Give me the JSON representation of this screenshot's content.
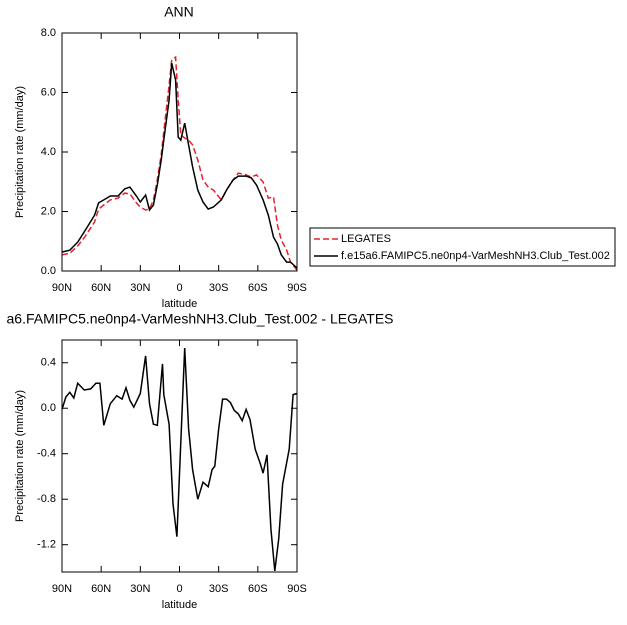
{
  "chart_data": [
    {
      "type": "line",
      "title": "ANN",
      "xlabel": "latitude",
      "ylabel": "Precipitation rate (mm/day)",
      "x": [
        90,
        84,
        78,
        72,
        65,
        62,
        58,
        53,
        47,
        42,
        38,
        33,
        30,
        26,
        23,
        20,
        17,
        14,
        11,
        8,
        6,
        3,
        1,
        -1,
        -4,
        -7,
        -10,
        -14,
        -18,
        -22,
        -26,
        -32,
        -36,
        -41,
        -45,
        -51,
        -55,
        -59,
        -64,
        -68,
        -72,
        -75,
        -78,
        -82,
        -85,
        -90
      ],
      "series": [
        {
          "name": "LEGATES",
          "color": "#e8202a",
          "dash": "dashed",
          "values": [
            0.54,
            0.6,
            0.84,
            1.18,
            1.65,
            2.08,
            2.22,
            2.39,
            2.45,
            2.62,
            2.59,
            2.29,
            2.15,
            2.05,
            2.08,
            2.39,
            3.06,
            3.9,
            5.08,
            6.25,
            7.09,
            7.19,
            5.75,
            4.57,
            4.47,
            4.4,
            4.24,
            3.73,
            3.06,
            2.82,
            2.72,
            2.39,
            2.72,
            3.06,
            3.29,
            3.23,
            3.16,
            3.23,
            2.99,
            2.45,
            2.49,
            1.55,
            1.04,
            0.71,
            0.3,
            0.03
          ]
        },
        {
          "name": "f.e15a6.FAMIPC5.ne0np4-VarMeshNH3.Club_Test.002",
          "color": "#000000",
          "dash": "solid",
          "values": [
            0.64,
            0.7,
            0.97,
            1.38,
            1.88,
            2.29,
            2.39,
            2.52,
            2.52,
            2.76,
            2.82,
            2.52,
            2.32,
            2.55,
            2.05,
            2.22,
            2.89,
            3.73,
            4.74,
            5.75,
            6.99,
            6.42,
            4.5,
            4.4,
            4.97,
            4.24,
            3.5,
            2.72,
            2.32,
            2.08,
            2.15,
            2.39,
            2.72,
            3.06,
            3.19,
            3.19,
            3.13,
            2.89,
            2.39,
            1.88,
            1.14,
            0.91,
            0.54,
            0.3,
            0.3,
            0.1
          ]
        }
      ],
      "xlim": [
        90,
        -90
      ],
      "xticks": [
        {
          "value": 90,
          "label": "90N"
        },
        {
          "value": 60,
          "label": "60N"
        },
        {
          "value": 30,
          "label": "30N"
        },
        0,
        {
          "value": -30,
          "label": "30S"
        },
        {
          "value": -60,
          "label": "60S"
        },
        {
          "value": -90,
          "label": "90S"
        }
      ],
      "ylim": [
        0,
        8
      ],
      "yticks": [
        {
          "value": 0,
          "label": "0.0"
        },
        {
          "value": 2,
          "label": "2.0"
        },
        {
          "value": 4,
          "label": "4.0"
        },
        {
          "value": 6,
          "label": "6.0"
        },
        {
          "value": 8,
          "label": "8.0"
        }
      ],
      "legend": "outside-right"
    },
    {
      "type": "line",
      "title": "a6.FAMIPC5.ne0np4-VarMeshNH3.Club_Test.002 - LEGATES",
      "xlabel": "latitude",
      "ylabel": "Precipitation rate (mm/day)",
      "x": [
        90,
        87,
        84,
        81,
        78,
        73,
        68,
        64,
        61,
        58,
        53,
        48,
        44,
        41,
        38,
        35,
        30,
        26,
        23,
        20,
        17,
        13,
        12,
        8,
        5,
        2,
        -4,
        -7,
        -10,
        -14,
        -18,
        -22,
        -25,
        -27,
        -30,
        -33,
        -36,
        -39,
        -42,
        -45,
        -48,
        -51,
        -54,
        -58,
        -62,
        -64,
        -67,
        -70,
        -73,
        -76,
        -79,
        -84,
        -87,
        -90
      ],
      "series": [
        {
          "color": "#000000",
          "dash": "solid",
          "values": [
            -0.01,
            0.1,
            0.14,
            0.09,
            0.22,
            0.16,
            0.17,
            0.22,
            0.22,
            -0.15,
            0.04,
            0.11,
            0.08,
            0.18,
            0.07,
            0.01,
            0.13,
            0.46,
            0.04,
            -0.14,
            -0.15,
            0.39,
            0.12,
            -0.14,
            -0.84,
            -1.13,
            0.53,
            -0.18,
            -0.54,
            -0.8,
            -0.65,
            -0.69,
            -0.54,
            -0.51,
            -0.18,
            0.08,
            0.08,
            0.05,
            -0.02,
            -0.05,
            -0.11,
            -0.01,
            -0.1,
            -0.36,
            -0.49,
            -0.57,
            -0.41,
            -1.06,
            -1.43,
            -1.15,
            -0.67,
            -0.36,
            0.12,
            0.13
          ]
        }
      ],
      "xlim": [
        90,
        -90
      ],
      "xticks": [
        {
          "value": 90,
          "label": "90N"
        },
        {
          "value": 60,
          "label": "60N"
        },
        {
          "value": 30,
          "label": "30N"
        },
        0,
        {
          "value": -30,
          "label": "30S"
        },
        {
          "value": -60,
          "label": "60S"
        },
        {
          "value": -90,
          "label": "90S"
        }
      ],
      "ylim": [
        -1.44,
        0.6
      ],
      "yticks": [
        -1.2,
        -0.8,
        -0.4,
        {
          "value": 0,
          "label": "0.0"
        },
        0.4
      ]
    }
  ]
}
